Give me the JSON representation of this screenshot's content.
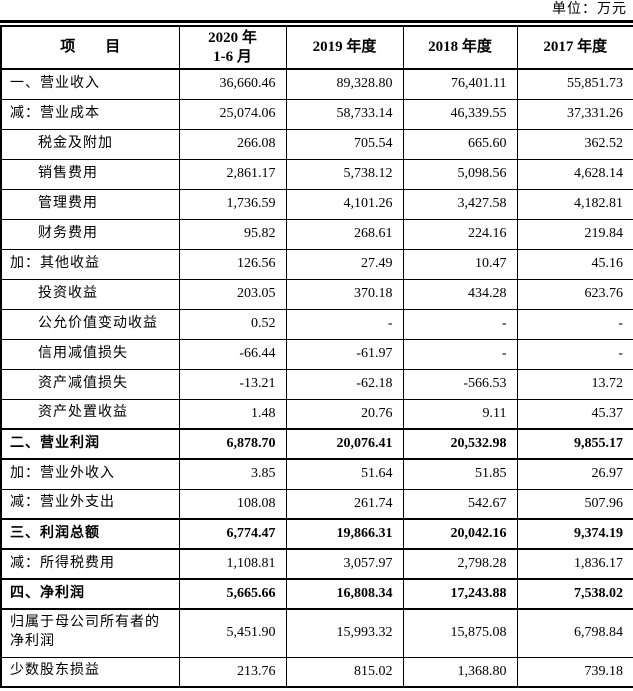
{
  "unit_label": "单位：万元",
  "table": {
    "header": {
      "item": "项　　目",
      "col1_line1": "2020 年",
      "col1_line2": "1-6 月",
      "col2": "2019 年度",
      "col3": "2018 年度",
      "col4": "2017 年度"
    },
    "rows": [
      {
        "label": "一、营业收入",
        "indent": false,
        "bold": false,
        "tall": false,
        "thick_top": false,
        "values": [
          "36,660.46",
          "89,328.80",
          "76,401.11",
          "55,851.73"
        ]
      },
      {
        "label": "减：营业成本",
        "indent": false,
        "bold": false,
        "tall": false,
        "thick_top": false,
        "values": [
          "25,074.06",
          "58,733.14",
          "46,339.55",
          "37,331.26"
        ]
      },
      {
        "label": "税金及附加",
        "indent": true,
        "bold": false,
        "tall": false,
        "thick_top": false,
        "values": [
          "266.08",
          "705.54",
          "665.60",
          "362.52"
        ]
      },
      {
        "label": "销售费用",
        "indent": true,
        "bold": false,
        "tall": false,
        "thick_top": false,
        "values": [
          "2,861.17",
          "5,738.12",
          "5,098.56",
          "4,628.14"
        ]
      },
      {
        "label": "管理费用",
        "indent": true,
        "bold": false,
        "tall": false,
        "thick_top": false,
        "values": [
          "1,736.59",
          "4,101.26",
          "3,427.58",
          "4,182.81"
        ]
      },
      {
        "label": "财务费用",
        "indent": true,
        "bold": false,
        "tall": false,
        "thick_top": false,
        "values": [
          "95.82",
          "268.61",
          "224.16",
          "219.84"
        ]
      },
      {
        "label": "加：其他收益",
        "indent": false,
        "bold": false,
        "tall": false,
        "thick_top": false,
        "values": [
          "126.56",
          "27.49",
          "10.47",
          "45.16"
        ]
      },
      {
        "label": "投资收益",
        "indent": true,
        "bold": false,
        "tall": false,
        "thick_top": false,
        "values": [
          "203.05",
          "370.18",
          "434.28",
          "623.76"
        ]
      },
      {
        "label": "公允价值变动收益",
        "indent": true,
        "bold": false,
        "tall": false,
        "thick_top": false,
        "values": [
          "0.52",
          "-",
          "-",
          "-"
        ]
      },
      {
        "label": "信用减值损失",
        "indent": true,
        "bold": false,
        "tall": false,
        "thick_top": false,
        "values": [
          "-66.44",
          "-61.97",
          "-",
          "-"
        ]
      },
      {
        "label": "资产减值损失",
        "indent": true,
        "bold": false,
        "tall": false,
        "thick_top": false,
        "values": [
          "-13.21",
          "-62.18",
          "-566.53",
          "13.72"
        ]
      },
      {
        "label": "资产处置收益",
        "indent": true,
        "bold": false,
        "tall": false,
        "thick_top": false,
        "values": [
          "1.48",
          "20.76",
          "9.11",
          "45.37"
        ]
      },
      {
        "label": "二、营业利润",
        "indent": false,
        "bold": true,
        "tall": false,
        "thick_top": true,
        "values": [
          "6,878.70",
          "20,076.41",
          "20,532.98",
          "9,855.17"
        ]
      },
      {
        "label": "加：营业外收入",
        "indent": false,
        "bold": false,
        "tall": false,
        "thick_top": true,
        "values": [
          "3.85",
          "51.64",
          "51.85",
          "26.97"
        ]
      },
      {
        "label": "减：营业外支出",
        "indent": false,
        "bold": false,
        "tall": false,
        "thick_top": false,
        "values": [
          "108.08",
          "261.74",
          "542.67",
          "507.96"
        ]
      },
      {
        "label": "三、利润总额",
        "indent": false,
        "bold": true,
        "tall": false,
        "thick_top": true,
        "values": [
          "6,774.47",
          "19,866.31",
          "20,042.16",
          "9,374.19"
        ]
      },
      {
        "label": "减：所得税费用",
        "indent": false,
        "bold": false,
        "tall": false,
        "thick_top": true,
        "values": [
          "1,108.81",
          "3,057.97",
          "2,798.28",
          "1,836.17"
        ]
      },
      {
        "label": "四、净利润",
        "indent": false,
        "bold": true,
        "tall": false,
        "thick_top": true,
        "values": [
          "5,665.66",
          "16,808.34",
          "17,243.88",
          "7,538.02"
        ]
      },
      {
        "label": "归属于母公司所有者的净利润",
        "indent": false,
        "bold": false,
        "tall": true,
        "thick_top": true,
        "values": [
          "5,451.90",
          "15,993.32",
          "15,875.08",
          "6,798.84"
        ]
      },
      {
        "label": "少数股东损益",
        "indent": false,
        "bold": false,
        "tall": false,
        "thick_top": false,
        "values": [
          "213.76",
          "815.02",
          "1,368.80",
          "739.18"
        ]
      }
    ]
  }
}
